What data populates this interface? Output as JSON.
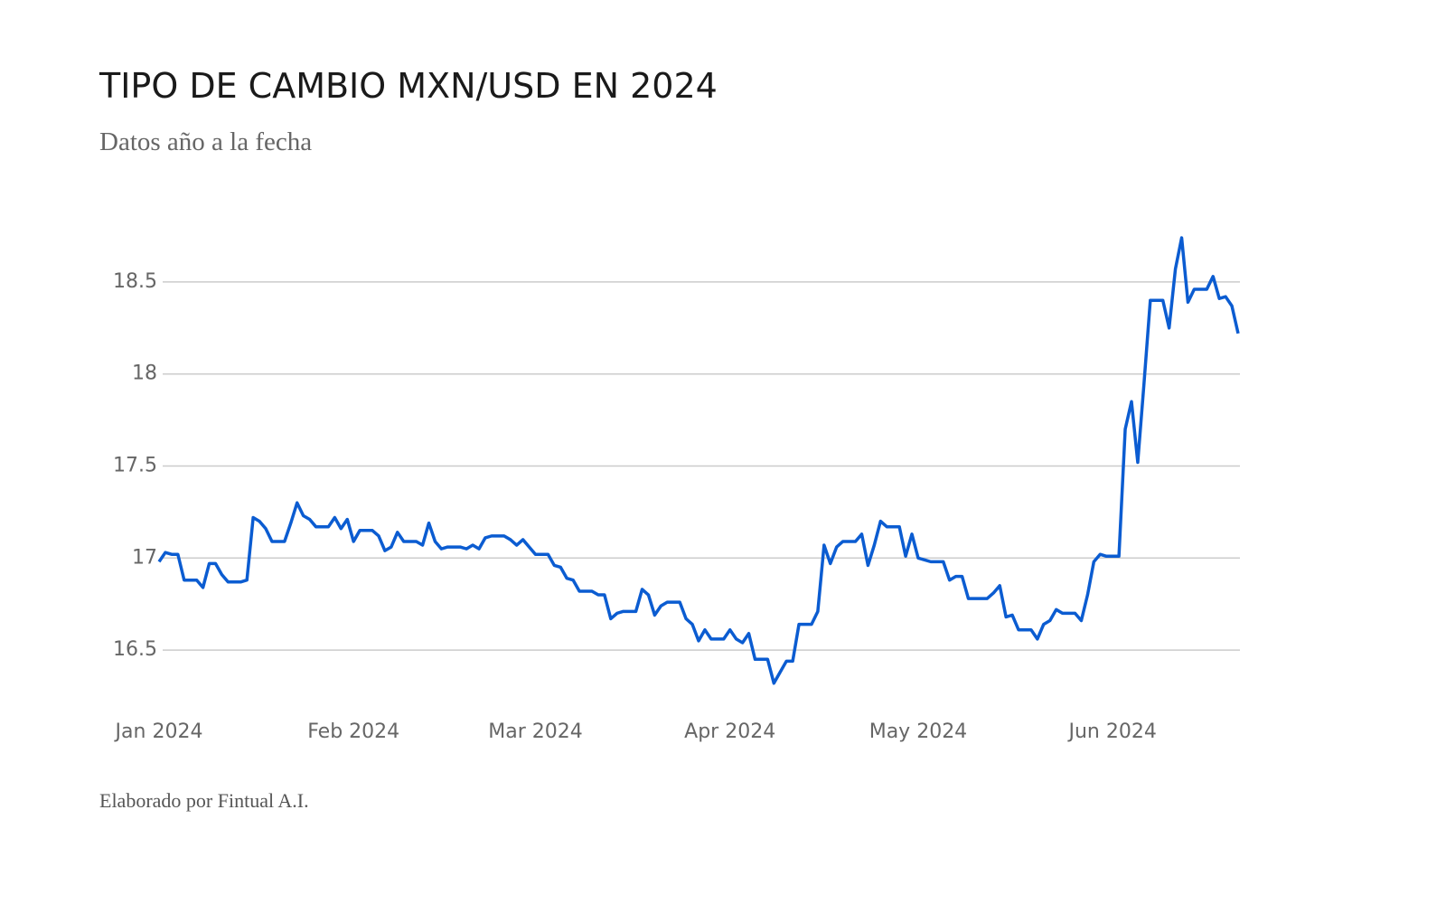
{
  "chart_data": {
    "type": "line",
    "title": "TIPO DE CAMBIO MXN/USD EN 2024",
    "subtitle": "Datos año a la fecha",
    "footer": "Elaborado por Fintual A.I.",
    "categories": [
      "Jan 2024",
      null,
      null,
      null,
      null,
      null,
      null,
      null,
      null,
      null,
      null,
      null,
      null,
      null,
      null,
      null,
      null,
      null,
      null,
      null,
      null,
      null,
      null,
      null,
      null,
      null,
      null,
      null,
      null,
      null,
      null,
      "Feb 2024",
      null,
      null,
      null,
      null,
      null,
      null,
      null,
      null,
      null,
      null,
      null,
      null,
      null,
      null,
      null,
      null,
      null,
      null,
      null,
      null,
      null,
      null,
      null,
      null,
      null,
      null,
      null,
      null,
      "Mar 2024",
      null,
      null,
      null,
      null,
      null,
      null,
      null,
      null,
      null,
      null,
      null,
      null,
      null,
      null,
      null,
      null,
      null,
      null,
      null,
      null,
      null,
      null,
      null,
      null,
      null,
      null,
      null,
      null,
      null,
      null,
      "Apr 2024",
      null,
      null,
      null,
      null,
      null,
      null,
      null,
      null,
      null,
      null,
      null,
      null,
      null,
      null,
      null,
      null,
      null,
      null,
      null,
      null,
      null,
      null,
      null,
      null,
      null,
      null,
      null,
      null,
      null,
      "May 2024",
      null,
      null,
      null,
      null,
      null,
      null,
      null,
      null,
      null,
      null,
      null,
      null,
      null,
      null,
      null,
      null,
      null,
      null,
      null,
      null,
      null,
      null,
      null,
      null,
      null,
      null,
      null,
      null,
      null,
      null,
      "Jun 2024",
      null,
      null,
      null,
      null,
      null,
      null,
      null,
      null,
      null,
      null,
      null,
      null,
      null,
      null,
      null,
      null,
      null,
      null,
      null,
      null
    ],
    "series": [
      {
        "name": "MXN/USD",
        "color": "#0b5cd1",
        "values": [
          16.98,
          17.03,
          17.02,
          17.02,
          16.88,
          16.88,
          16.88,
          16.84,
          16.97,
          16.97,
          16.91,
          16.87,
          16.87,
          16.87,
          16.88,
          17.22,
          17.2,
          17.16,
          17.09,
          17.09,
          17.09,
          17.19,
          17.3,
          17.23,
          17.21,
          17.17,
          17.17,
          17.17,
          17.22,
          17.16,
          17.21,
          17.09,
          17.15,
          17.15,
          17.15,
          17.12,
          17.04,
          17.06,
          17.14,
          17.09,
          17.09,
          17.09,
          17.07,
          17.19,
          17.09,
          17.05,
          17.06,
          17.06,
          17.06,
          17.05,
          17.07,
          17.05,
          17.11,
          17.12,
          17.12,
          17.12,
          17.1,
          17.07,
          17.1,
          17.06,
          17.02,
          17.02,
          17.02,
          16.96,
          16.95,
          16.89,
          16.88,
          16.82,
          16.82,
          16.82,
          16.8,
          16.8,
          16.67,
          16.7,
          16.71,
          16.71,
          16.71,
          16.83,
          16.8,
          16.69,
          16.74,
          16.76,
          16.76,
          16.76,
          16.67,
          16.64,
          16.55,
          16.61,
          16.56,
          16.56,
          16.56,
          16.61,
          16.56,
          16.54,
          16.59,
          16.45,
          16.45,
          16.45,
          16.32,
          16.38,
          16.44,
          16.44,
          16.64,
          16.64,
          16.64,
          16.71,
          17.07,
          16.97,
          17.06,
          17.09,
          17.09,
          17.09,
          17.13,
          16.96,
          17.07,
          17.2,
          17.17,
          17.17,
          17.17,
          17.01,
          17.13,
          17.0,
          16.99,
          16.98,
          16.98,
          16.98,
          16.88,
          16.9,
          16.9,
          16.78,
          16.78,
          16.78,
          16.78,
          16.81,
          16.85,
          16.68,
          16.69,
          16.61,
          16.61,
          16.61,
          16.56,
          16.64,
          16.66,
          16.72,
          16.7,
          16.7,
          16.7,
          16.66,
          16.8,
          16.98,
          17.02,
          17.01,
          17.01,
          17.01,
          17.7,
          17.85,
          17.52,
          17.95,
          18.4,
          18.4,
          18.4,
          18.25,
          18.57,
          18.74,
          18.39,
          18.46,
          18.46,
          18.46,
          18.53,
          18.41,
          18.42,
          18.37,
          18.22
        ]
      }
    ],
    "ylim": [
      16.25,
      18.75
    ],
    "yticks": [
      16.5,
      17,
      17.5,
      18,
      18.5
    ],
    "grid": true
  }
}
